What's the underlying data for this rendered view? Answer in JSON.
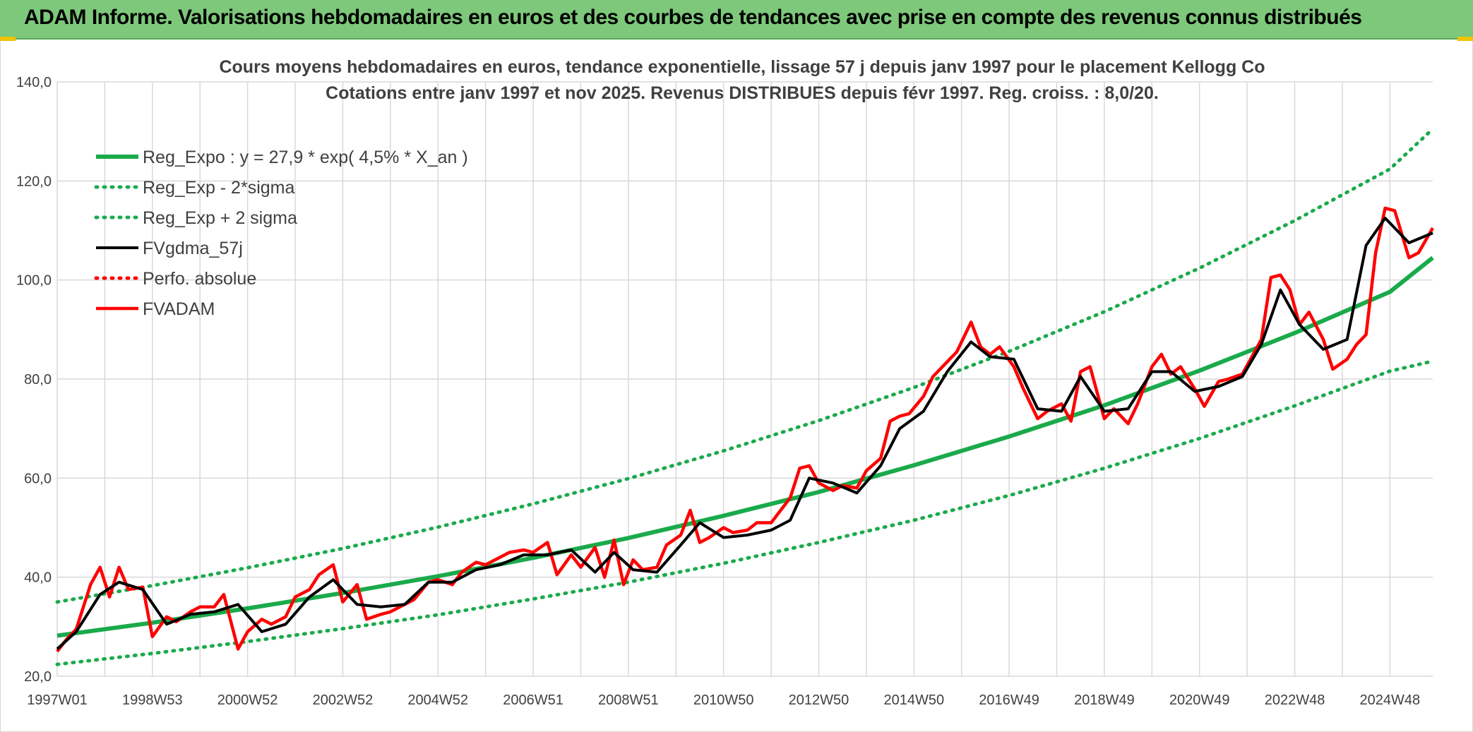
{
  "header": {
    "title": "ADAM Informe. Valorisations hebdomadaires en euros et des courbes de tendances avec prise en compte des revenus connus distribués"
  },
  "colors": {
    "banner": "#7dc87a",
    "trend": "#1aaa4b",
    "ma": "#000000",
    "price": "#ff0000",
    "grid": "#d9d9d9",
    "text": "#404040"
  },
  "chart_data": {
    "type": "line",
    "title": [
      "Cours moyens hebdomadaires en euros, tendance exponentielle, lissage 57 j depuis janv 1997 pour le placement Kellogg Co",
      "Cotations entre janv 1997 et nov 2025. Revenus DISTRIBUES depuis févr 1997. Reg. croiss. : 8,0/20."
    ],
    "xlabel": "",
    "ylabel": "",
    "xlim": [
      1997.0,
      2025.9
    ],
    "ylim": [
      20,
      140
    ],
    "grid": true,
    "legend_position": "top-left",
    "y_ticks": [
      "20,0",
      "40,0",
      "60,0",
      "80,0",
      "100,0",
      "120,0",
      "140,0"
    ],
    "y_tick_values": [
      20,
      40,
      60,
      80,
      100,
      120,
      140
    ],
    "x_ticks": [
      "1997W01",
      "1998W53",
      "2000W52",
      "2002W52",
      "2004W52",
      "2006W51",
      "2008W51",
      "2010W50",
      "2012W50",
      "2014W50",
      "2016W49",
      "2018W49",
      "2020W49",
      "2022W48",
      "2024W48"
    ],
    "x_tick_values": [
      1997.0,
      1999.0,
      2001.0,
      2003.0,
      2005.0,
      2007.0,
      2009.0,
      2011.0,
      2013.0,
      2015.0,
      2017.0,
      2019.0,
      2021.0,
      2023.0,
      2025.0
    ],
    "series": [
      {
        "name": "Reg_Expo : y = 27,9 * exp( 4,5% *  X_an )",
        "style": "solid",
        "color": "#1aaa4b",
        "x": [
          1997.0,
          1999.0,
          2001.0,
          2003.0,
          2005.0,
          2007.0,
          2009.0,
          2011.0,
          2013.0,
          2015.0,
          2017.0,
          2019.0,
          2021.0,
          2023.0,
          2025.0,
          2025.9
        ],
        "y": [
          28.2,
          30.8,
          33.7,
          36.8,
          40.2,
          43.9,
          47.9,
          52.4,
          57.2,
          62.6,
          68.4,
          74.7,
          81.7,
          89.3,
          97.6,
          104.5
        ]
      },
      {
        "name": "Reg_Exp - 2*sigma",
        "style": "dotted",
        "color": "#1aaa4b",
        "x": [
          1997.0,
          1999.0,
          2001.0,
          2003.0,
          2005.0,
          2007.0,
          2009.0,
          2011.0,
          2013.0,
          2015.0,
          2017.0,
          2019.0,
          2021.0,
          2023.0,
          2025.0,
          2025.9
        ],
        "y": [
          22.4,
          24.6,
          27.0,
          29.6,
          32.4,
          35.6,
          39.0,
          42.8,
          47.0,
          51.5,
          56.5,
          62.0,
          68.0,
          74.6,
          81.6,
          83.6
        ]
      },
      {
        "name": "Reg_Exp + 2 sigma",
        "style": "dotted",
        "color": "#1aaa4b",
        "x": [
          1997.0,
          1999.0,
          2001.0,
          2003.0,
          2005.0,
          2007.0,
          2009.0,
          2011.0,
          2013.0,
          2015.0,
          2017.0,
          2019.0,
          2021.0,
          2023.0,
          2025.0,
          2025.9
        ],
        "y": [
          35.0,
          38.3,
          41.9,
          45.8,
          50.1,
          54.8,
          59.9,
          65.5,
          71.6,
          78.3,
          85.6,
          93.6,
          102.4,
          112.0,
          122.4,
          130.5
        ]
      },
      {
        "name": "FVgdma_57j",
        "style": "solid",
        "color": "#000000",
        "x": [
          1997.0,
          1997.4,
          1997.9,
          1998.3,
          1998.8,
          1999.3,
          1999.8,
          2000.3,
          2000.8,
          2001.3,
          2001.8,
          2002.3,
          2002.8,
          2003.3,
          2003.8,
          2004.3,
          2004.8,
          2005.3,
          2005.8,
          2006.3,
          2006.8,
          2007.3,
          2007.8,
          2008.3,
          2008.7,
          2009.1,
          2009.6,
          2010.1,
          2010.5,
          2011.0,
          2011.5,
          2012.0,
          2012.4,
          2012.8,
          2013.3,
          2013.8,
          2014.3,
          2014.7,
          2015.2,
          2015.7,
          2016.2,
          2016.6,
          2017.1,
          2017.6,
          2018.1,
          2018.5,
          2019.0,
          2019.5,
          2020.0,
          2020.4,
          2020.9,
          2021.4,
          2021.9,
          2022.3,
          2022.7,
          2023.1,
          2023.6,
          2024.1,
          2024.5,
          2024.9,
          2025.4,
          2025.9
        ],
        "y": [
          25.5,
          29,
          36.5,
          39,
          37.5,
          30.5,
          32.5,
          33,
          34.5,
          29,
          30.5,
          36,
          39.5,
          34.5,
          34,
          34.5,
          39,
          39,
          41.5,
          42.5,
          44.5,
          44.5,
          45.5,
          41,
          45,
          41.5,
          41,
          46.5,
          51,
          48,
          48.5,
          49.5,
          51.5,
          60,
          59,
          57,
          62.5,
          70,
          73.5,
          81.5,
          87.5,
          84.5,
          84,
          74,
          73.5,
          80.5,
          73.5,
          74,
          81.5,
          81.5,
          77.5,
          78.5,
          80.5,
          87,
          98,
          91,
          86,
          88,
          107,
          112.5,
          107.5,
          109.5
        ]
      },
      {
        "name": "Perfo. absolue",
        "style": "dotted",
        "color": "#ff0000",
        "x": [],
        "y": []
      },
      {
        "name": "FVADAM",
        "style": "solid",
        "color": "#ff0000",
        "x": [
          1997.0,
          1997.2,
          1997.4,
          1997.7,
          1997.9,
          1998.1,
          1998.3,
          1998.5,
          1998.8,
          1999.0,
          1999.3,
          1999.5,
          1999.8,
          2000.0,
          2000.3,
          2000.5,
          2000.8,
          2001.0,
          2001.3,
          2001.5,
          2001.8,
          2002.0,
          2002.3,
          2002.5,
          2002.8,
          2003.0,
          2003.3,
          2003.5,
          2003.8,
          2004.0,
          2004.3,
          2004.5,
          2004.8,
          2005.0,
          2005.3,
          2005.5,
          2005.8,
          2006.0,
          2006.3,
          2006.5,
          2006.8,
          2007.0,
          2007.3,
          2007.5,
          2007.8,
          2008.0,
          2008.3,
          2008.5,
          2008.7,
          2008.9,
          2009.1,
          2009.3,
          2009.6,
          2009.8,
          2010.1,
          2010.3,
          2010.5,
          2010.7,
          2011.0,
          2011.2,
          2011.5,
          2011.7,
          2012.0,
          2012.2,
          2012.4,
          2012.6,
          2012.8,
          2013.0,
          2013.3,
          2013.5,
          2013.8,
          2014.0,
          2014.3,
          2014.5,
          2014.7,
          2014.9,
          2015.2,
          2015.4,
          2015.7,
          2015.9,
          2016.2,
          2016.4,
          2016.6,
          2016.8,
          2017.1,
          2017.3,
          2017.6,
          2017.8,
          2018.1,
          2018.3,
          2018.5,
          2018.7,
          2019.0,
          2019.2,
          2019.5,
          2019.7,
          2020.0,
          2020.2,
          2020.4,
          2020.6,
          2020.9,
          2021.1,
          2021.4,
          2021.6,
          2021.9,
          2022.1,
          2022.3,
          2022.5,
          2022.7,
          2022.9,
          2023.1,
          2023.3,
          2023.6,
          2023.8,
          2024.1,
          2024.3,
          2024.5,
          2024.7,
          2024.9,
          2025.1,
          2025.4,
          2025.6,
          2025.9
        ],
        "y": [
          25,
          27.5,
          29.5,
          38.5,
          42,
          36,
          42,
          37.5,
          38,
          28,
          32,
          31,
          33,
          34,
          34,
          36.5,
          25.5,
          29,
          31.5,
          30.5,
          32,
          36,
          37.5,
          40.5,
          42.5,
          35,
          38.5,
          31.5,
          32.5,
          33,
          34.5,
          35.5,
          39,
          39.5,
          38.5,
          41,
          43,
          42.5,
          44,
          45,
          45.5,
          45,
          47,
          40.5,
          44.5,
          42,
          46,
          40,
          47.5,
          38.5,
          43.5,
          41.5,
          42,
          46.5,
          48.5,
          53.5,
          47,
          48,
          50,
          49,
          49.5,
          51,
          51,
          53.5,
          56,
          62,
          62.5,
          59,
          57.5,
          58.5,
          58,
          61.5,
          64,
          71.5,
          72.5,
          73,
          76.5,
          80.5,
          83.5,
          85.5,
          91.5,
          86.5,
          85,
          86.5,
          82.5,
          78,
          72,
          73.5,
          75,
          71.5,
          81.5,
          82.5,
          72,
          74,
          71,
          75,
          82.5,
          85,
          81,
          82.5,
          78,
          74.5,
          79.5,
          80,
          81,
          84.5,
          88,
          100.5,
          101,
          98,
          91,
          93.5,
          88,
          82,
          84,
          87,
          89,
          105.5,
          114.5,
          114,
          104.5,
          105.5,
          110.5
        ]
      }
    ]
  }
}
